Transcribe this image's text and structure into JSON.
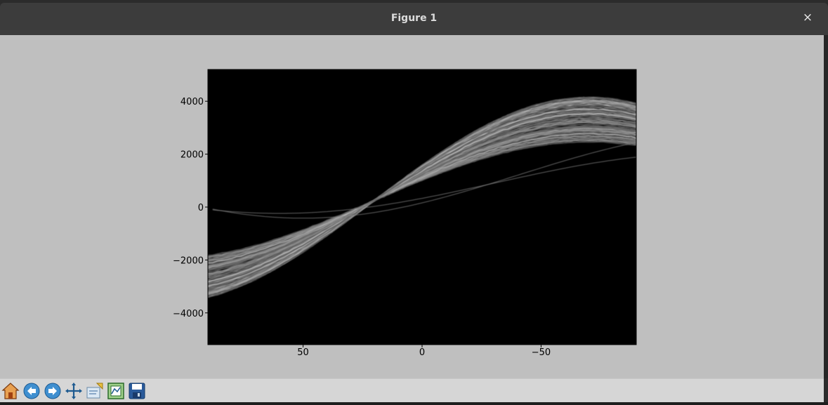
{
  "window": {
    "title": "Figure 1",
    "close_glyph": "×"
  },
  "toolbar": {
    "buttons": [
      {
        "name": "home-icon",
        "label": "Home"
      },
      {
        "name": "back-arrow-icon",
        "label": "Back"
      },
      {
        "name": "forward-arrow-icon",
        "label": "Forward"
      },
      {
        "name": "pan-icon",
        "label": "Pan"
      },
      {
        "name": "zoom-icon",
        "label": "Zoom"
      },
      {
        "name": "subplots-icon",
        "label": "Configure subplots"
      },
      {
        "name": "save-icon",
        "label": "Save"
      }
    ]
  },
  "chart_data": {
    "type": "heatmap",
    "title": "",
    "xlabel": "",
    "ylabel": "",
    "x_ticks": [
      50,
      0,
      -50
    ],
    "y_ticks": [
      -4000,
      -2000,
      0,
      2000,
      4000
    ],
    "x_tick_labels": [
      "50",
      "0",
      "−50"
    ],
    "y_tick_labels": [
      "−4000",
      "−2000",
      "0",
      "2000",
      "4000"
    ],
    "xlim": [
      90,
      -90
    ],
    "ylim": [
      5200,
      -5200
    ],
    "colormap": "gray",
    "background": "#000000",
    "description_values": {
      "curve_family": "sinusoidal Hough-transform bands converging near theta≈20, rho≈250"
    }
  },
  "colors": {
    "figure_bg": "#bfbfbf",
    "titlebar_bg": "#3c3c3c",
    "toolbar_bg": "#d6d6d6"
  }
}
